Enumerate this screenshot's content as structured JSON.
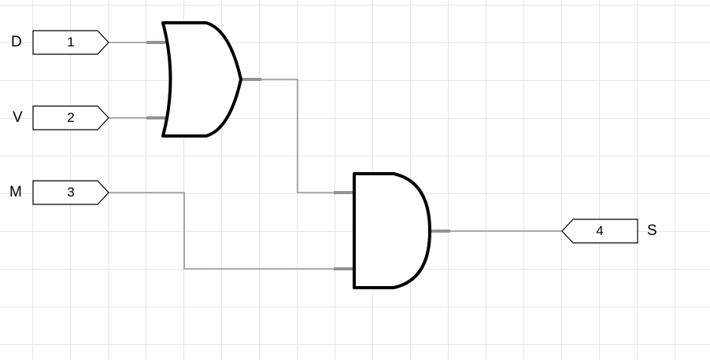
{
  "inputs": [
    {
      "name": "D",
      "number": "1"
    },
    {
      "name": "V",
      "number": "2"
    },
    {
      "name": "M",
      "number": "3"
    }
  ],
  "output": {
    "name": "S",
    "number": "4"
  },
  "gates": [
    "or-gate",
    "and-gate"
  ],
  "colors": {
    "wire": "#9a9090",
    "grid": "#e6e6e6",
    "gate_stroke": "#000000"
  }
}
